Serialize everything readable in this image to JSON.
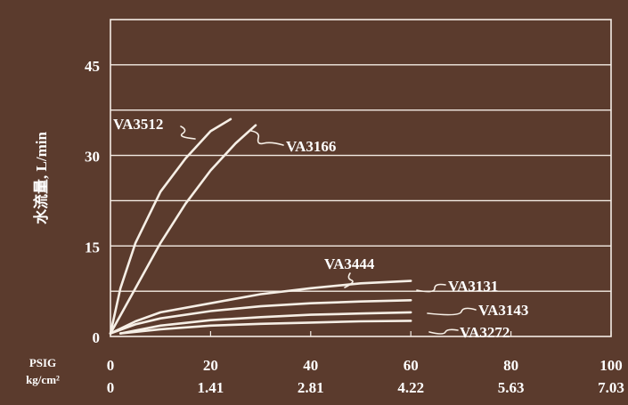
{
  "chart_data": {
    "type": "line",
    "title": "",
    "xlabel": "",
    "ylabel": "水流量, L/min",
    "x_unit_labels": [
      "PSIG",
      "kg/cm²"
    ],
    "xlim": [
      0,
      100
    ],
    "ylim": [
      0,
      45
    ],
    "x_ticks": [
      0,
      20,
      40,
      60,
      80,
      100
    ],
    "x_ticks_kg": [
      "0",
      "1.41",
      "2.81",
      "4.22",
      "5.63",
      "7.03"
    ],
    "y_ticks": [
      0,
      15,
      30,
      45
    ],
    "grid": true,
    "series": [
      {
        "name": "VA3512",
        "x": [
          0,
          2,
          5,
          10,
          15,
          20,
          24
        ],
        "y": [
          0.5,
          8,
          15.5,
          24,
          29.5,
          34,
          36
        ]
      },
      {
        "name": "VA3166",
        "x": [
          0,
          5,
          10,
          15,
          20,
          25,
          29
        ],
        "y": [
          0.5,
          8,
          15.5,
          22,
          27.5,
          32,
          35
        ]
      },
      {
        "name": "VA3444",
        "x": [
          0,
          5,
          10,
          20,
          30,
          40,
          50,
          60
        ],
        "y": [
          0.5,
          2.5,
          4,
          5.5,
          7,
          8,
          8.8,
          9.2
        ]
      },
      {
        "name": "VA3131",
        "x": [
          0,
          5,
          10,
          20,
          30,
          40,
          50,
          60
        ],
        "y": [
          0.5,
          2,
          3,
          4.2,
          5,
          5.5,
          5.8,
          6
        ]
      },
      {
        "name": "VA3143",
        "x": [
          2,
          10,
          20,
          30,
          40,
          50,
          60
        ],
        "y": [
          0.5,
          1.8,
          2.7,
          3.2,
          3.6,
          3.8,
          4
        ]
      },
      {
        "name": "VA3272",
        "x": [
          2,
          10,
          20,
          30,
          40,
          50,
          60
        ],
        "y": [
          0.5,
          1.2,
          1.8,
          2.1,
          2.3,
          2.5,
          2.6
        ]
      }
    ]
  }
}
